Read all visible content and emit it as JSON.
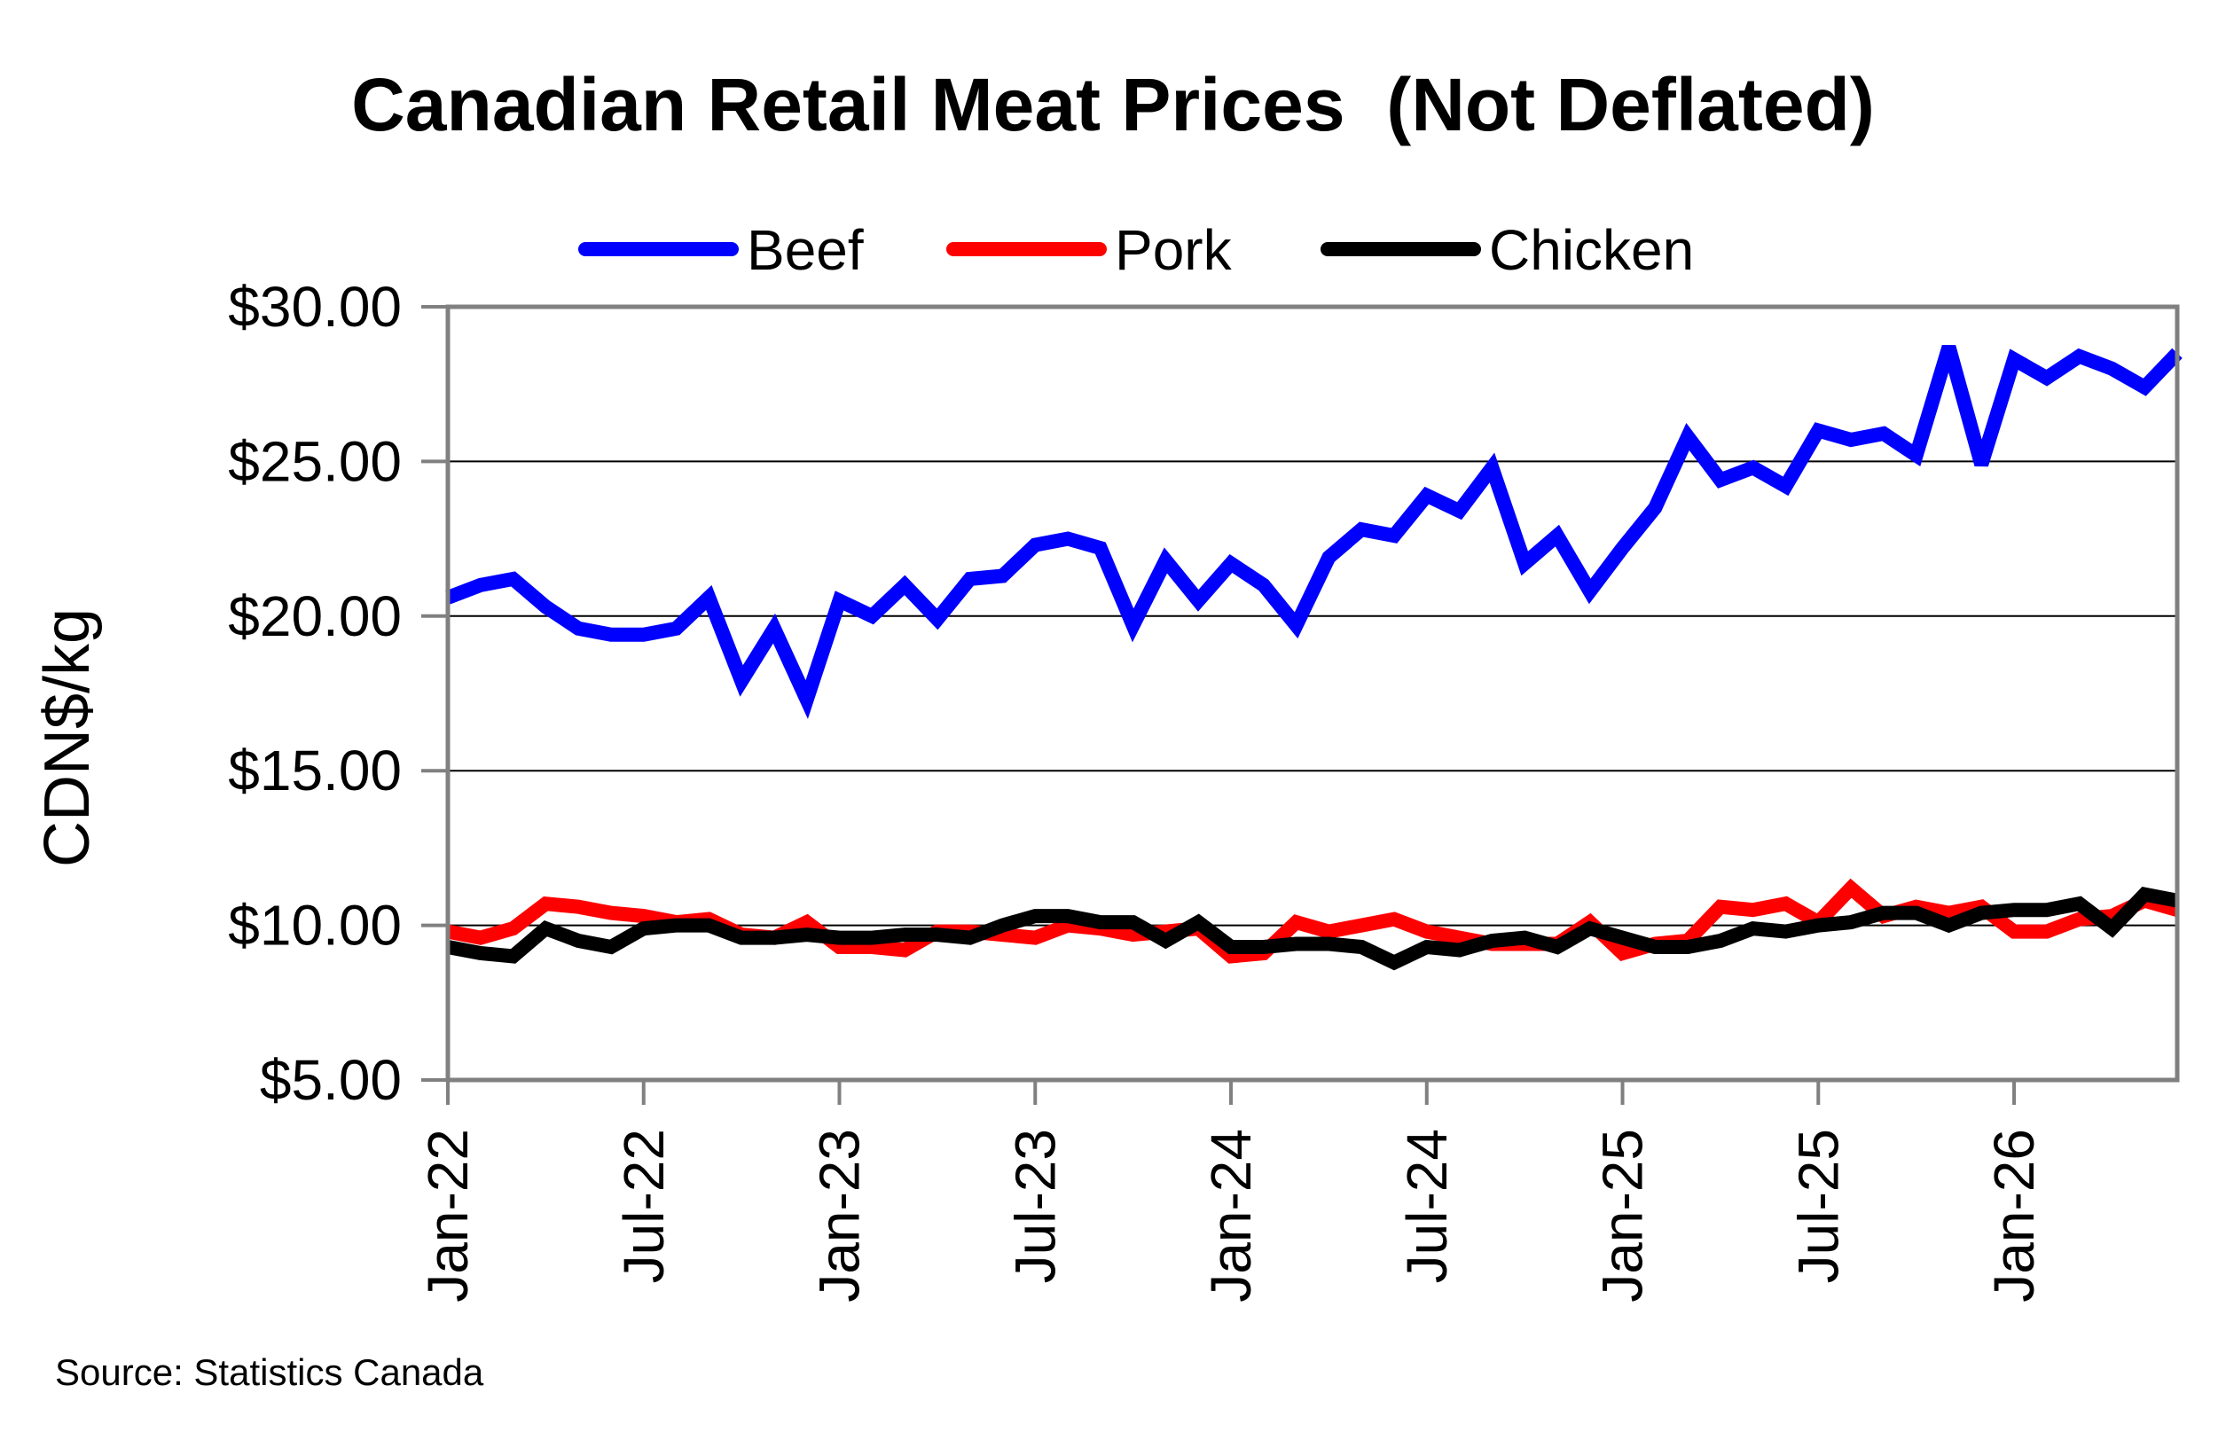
{
  "chart_data": {
    "type": "line",
    "title": "Canadian Retail Meat Prices  (Not Deflated)",
    "ylabel": "CDN$/kg",
    "xlabel": "",
    "source": "Source: Statistics Canada",
    "ylim": [
      5,
      30
    ],
    "yticks": [
      5,
      10,
      15,
      20,
      25,
      30
    ],
    "ytick_labels": [
      "$5.00",
      "$10.00",
      "$15.00",
      "$20.00",
      "$25.00",
      "$30.00"
    ],
    "x_start": "Jan-22",
    "xtick_labels": [
      "Jan-22",
      "Jul-22",
      "Jan-23",
      "Jul-23",
      "Jan-24",
      "Jul-24",
      "Jan-25",
      "Jul-25",
      "Jan-26"
    ],
    "xtick_positions": [
      0,
      6,
      12,
      18,
      24,
      30,
      36,
      42,
      48
    ],
    "legend_position": "top",
    "grid": "horizontal",
    "series": [
      {
        "name": "Beef",
        "color": "#0000FF",
        "values": [
          20.6,
          21.0,
          21.2,
          20.3,
          19.6,
          19.4,
          19.4,
          19.6,
          20.6,
          17.9,
          19.6,
          17.3,
          20.5,
          20.0,
          21.0,
          19.9,
          21.2,
          21.3,
          22.3,
          22.5,
          22.2,
          19.7,
          21.8,
          20.5,
          21.7,
          21.0,
          19.7,
          21.9,
          22.8,
          22.6,
          23.9,
          23.4,
          24.8,
          21.7,
          22.6,
          20.8,
          22.2,
          23.5,
          25.8,
          24.4,
          24.8,
          24.2,
          26.0,
          25.7,
          25.9,
          25.2,
          28.7,
          24.9,
          28.3,
          27.7,
          28.4,
          28.0,
          27.4,
          28.5
        ]
      },
      {
        "name": "Pork",
        "color": "#FF0000",
        "values": [
          9.8,
          9.6,
          9.9,
          10.7,
          10.6,
          10.4,
          10.3,
          10.1,
          10.2,
          9.7,
          9.6,
          10.1,
          9.3,
          9.3,
          9.2,
          9.8,
          9.8,
          9.7,
          9.6,
          10.0,
          9.9,
          9.7,
          9.8,
          9.9,
          9.0,
          9.1,
          10.1,
          9.8,
          10.0,
          10.2,
          9.8,
          9.6,
          9.4,
          9.4,
          9.4,
          10.1,
          9.1,
          9.4,
          9.5,
          10.6,
          10.5,
          10.7,
          10.1,
          11.2,
          10.3,
          10.6,
          10.4,
          10.6,
          9.8,
          9.8,
          10.2,
          10.3,
          10.8,
          10.5
        ]
      },
      {
        "name": "Chicken",
        "color": "#000000",
        "values": [
          9.3,
          9.1,
          9.0,
          9.9,
          9.5,
          9.3,
          9.9,
          10.0,
          10.0,
          9.6,
          9.6,
          9.7,
          9.6,
          9.6,
          9.7,
          9.7,
          9.6,
          10.0,
          10.3,
          10.3,
          10.1,
          10.1,
          9.5,
          10.1,
          9.3,
          9.3,
          9.4,
          9.4,
          9.3,
          8.8,
          9.3,
          9.2,
          9.5,
          9.6,
          9.3,
          9.9,
          9.6,
          9.3,
          9.3,
          9.5,
          9.9,
          9.8,
          10.0,
          10.1,
          10.4,
          10.4,
          10.0,
          10.4,
          10.5,
          10.5,
          10.7,
          9.9,
          11.0,
          10.8
        ]
      }
    ]
  }
}
